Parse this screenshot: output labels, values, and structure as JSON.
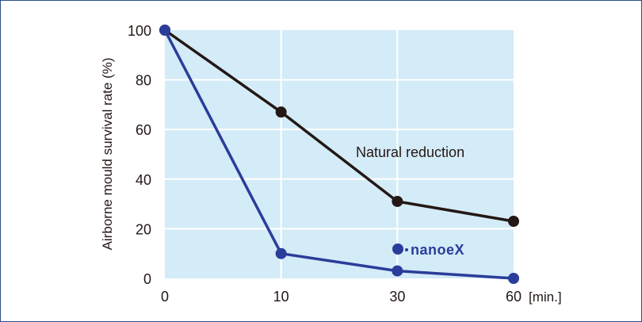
{
  "chart_data": {
    "type": "line",
    "categories": [
      "0",
      "10",
      "30",
      "60"
    ],
    "x_unit": "[min.]",
    "ylabel": "Airborne mould survival rate (%)",
    "ylim": [
      0,
      100
    ],
    "yticks": [
      0,
      20,
      40,
      60,
      80,
      100
    ],
    "grid": true,
    "series": [
      {
        "name": "Natural reduction",
        "values": [
          100,
          67,
          31,
          23
        ],
        "color": "#231815"
      },
      {
        "name": "nanoeX",
        "values": [
          100,
          10,
          3,
          0
        ],
        "color": "#2a3d9a"
      }
    ],
    "plot_background": "#d4ebf8"
  }
}
